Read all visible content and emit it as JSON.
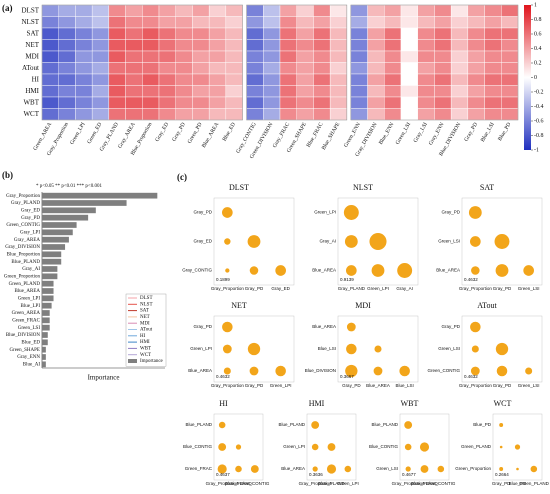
{
  "chart_data": [
    {
      "type": "heatmap",
      "label": "(a)",
      "rows": [
        "DLST",
        "NLST",
        "SAT",
        "NET",
        "MDI",
        "ATout",
        "HI",
        "HMI",
        "WBT",
        "WCT"
      ],
      "blocks": [
        {
          "columns": [
            "Green_AREA",
            "Gray_Proportion",
            "Green_LPI",
            "Green_ED",
            "Gray_PLAND",
            "Gray_AREA",
            "Blue_Proportion",
            "Gray_ED",
            "Gray_PD",
            "Green_PD",
            "Blue_AREA",
            "Blue_ED"
          ],
          "values": [
            [
              -0.5,
              -0.4,
              -0.4,
              -0.3,
              0.5,
              0.4,
              0.5,
              0.4,
              0.3,
              0.4,
              0.2,
              0.3
            ],
            [
              -0.6,
              -0.5,
              -0.4,
              -0.3,
              0.6,
              0.5,
              0.5,
              0.4,
              0.4,
              0.3,
              0.3,
              0.2
            ],
            [
              -0.8,
              -0.7,
              -0.6,
              -0.5,
              0.7,
              0.6,
              0.7,
              0.6,
              0.5,
              0.5,
              0.4,
              0.3
            ],
            [
              -0.8,
              -0.7,
              -0.6,
              -0.5,
              0.7,
              0.7,
              0.7,
              0.6,
              0.5,
              0.5,
              0.4,
              0.3
            ],
            [
              -0.8,
              -0.7,
              -0.5,
              -0.5,
              0.7,
              0.6,
              0.6,
              0.6,
              0.5,
              0.4,
              0.4,
              0.3
            ],
            [
              -0.7,
              -0.6,
              -0.5,
              -0.4,
              0.6,
              0.6,
              0.6,
              0.5,
              0.5,
              0.4,
              0.3,
              0.3
            ],
            [
              -0.7,
              -0.7,
              -0.6,
              -0.5,
              0.7,
              0.6,
              0.7,
              0.6,
              0.5,
              0.5,
              0.4,
              0.3
            ],
            [
              -0.7,
              -0.6,
              -0.6,
              -0.4,
              0.7,
              0.6,
              0.6,
              0.6,
              0.5,
              0.4,
              0.4,
              0.2
            ],
            [
              -0.8,
              -0.7,
              -0.6,
              -0.5,
              0.7,
              0.7,
              0.7,
              0.6,
              0.5,
              0.5,
              0.4,
              0.3
            ],
            [
              -0.7,
              -0.6,
              -0.5,
              -0.4,
              0.6,
              0.6,
              0.6,
              0.5,
              0.4,
              0.4,
              0.3,
              0.3
            ]
          ]
        },
        {
          "columns": [
            "Gray_CONTIG",
            "Green_DIVISION",
            "Gray_FRAC",
            "Green_SHAPE",
            "Blue_FRAC",
            "Blue_SHAPE"
          ],
          "values": [
            [
              -0.6,
              -0.3,
              0.4,
              0.2,
              0.5,
              0.1
            ],
            [
              -0.5,
              -0.3,
              0.5,
              0.3,
              0.4,
              0.2
            ],
            [
              -0.7,
              -0.5,
              0.6,
              0.4,
              0.6,
              0.3
            ],
            [
              -0.7,
              -0.5,
              0.6,
              0.5,
              0.6,
              0.3
            ],
            [
              -0.6,
              -0.5,
              0.6,
              0.4,
              0.5,
              0.3
            ],
            [
              -0.6,
              -0.4,
              0.5,
              0.4,
              0.5,
              0.2
            ],
            [
              -0.7,
              -0.5,
              0.6,
              0.4,
              0.6,
              0.3
            ],
            [
              -0.6,
              -0.5,
              0.6,
              0.4,
              0.5,
              0.3
            ],
            [
              -0.7,
              -0.5,
              0.6,
              0.5,
              0.6,
              0.3
            ],
            [
              -0.6,
              -0.4,
              0.5,
              0.4,
              0.5,
              0.2
            ]
          ]
        },
        {
          "columns": [
            "Green_ENN",
            "Gray_DIVISION",
            "Blue_ENN",
            "Green_LSI",
            "Gray_LSI",
            "Gray_ENN",
            "Blue_DIVISION",
            "Gray_PD",
            "Blue_LSI",
            "Blue_PD"
          ],
          "values": [
            [
              -0.5,
              0.3,
              0.4,
              0.1,
              0.4,
              0.5,
              0.1,
              0.4,
              0.5,
              0.6
            ],
            [
              -0.4,
              0.2,
              0.3,
              0.1,
              0.3,
              0.4,
              0.2,
              0.3,
              0.4,
              0.3
            ],
            [
              -0.6,
              0.4,
              0.6,
              0,
              0.5,
              0.6,
              0.3,
              0.5,
              0.6,
              0.6
            ],
            [
              -0.6,
              0.4,
              0.6,
              0,
              0.5,
              0.6,
              0.3,
              0.5,
              0.6,
              0.5
            ],
            [
              -0.6,
              0.3,
              0.5,
              0.1,
              0.5,
              0.5,
              0.2,
              0.4,
              0.5,
              0.5
            ],
            [
              -0.5,
              0.3,
              0.5,
              0,
              0.4,
              0.5,
              0.2,
              0.4,
              0.5,
              0.5
            ],
            [
              -0.6,
              0.4,
              0.6,
              0,
              0.5,
              0.6,
              0.3,
              0.5,
              0.6,
              0.6
            ],
            [
              -0.6,
              0.3,
              0.5,
              0.1,
              0.5,
              0.5,
              0.2,
              0.4,
              0.5,
              0.5
            ],
            [
              -0.6,
              0.4,
              0.6,
              0,
              0.5,
              0.6,
              0.3,
              0.5,
              0.6,
              0.6
            ],
            [
              -0.5,
              0.3,
              0.5,
              0,
              0.4,
              0.5,
              0.2,
              0.4,
              0.5,
              0.5
            ]
          ]
        }
      ],
      "clim": [
        -1,
        1
      ],
      "cticks": [
        1,
        0.8,
        0.6,
        0.4,
        0.2,
        0,
        -0.2,
        -0.4,
        -0.6,
        -0.8,
        -1
      ],
      "colors": [
        "#1f2fbf",
        "#ffffff",
        "#e0141c"
      ]
    },
    {
      "type": "hbar",
      "label": "(b)",
      "note": "* p<0.05  ** p<0.01  *** p<0.001",
      "xlabel": "Importance",
      "categories": [
        "Gray_Proportion",
        "Gray_PLAND",
        "Gray_ED",
        "Gray_PD",
        "Green_CONTIG",
        "Gray_LPI",
        "Gray_AREA",
        "Gray_DIVISION",
        "Blue_Proportion",
        "Blue_PLAND",
        "Gray_AI",
        "Green_Proportion",
        "Green_PLAND",
        "Blue_AREA",
        "Green_LPI",
        "Blue_LPI",
        "Green_AREA",
        "Green_FRAC",
        "Green_LSI",
        "Blue_DIVISION",
        "Blue_ED",
        "Green_SHAPE",
        "Gray_ENN",
        "Blue_AI"
      ],
      "series": [
        {
          "name": "Importance",
          "color": "#7f7f7f",
          "values": [
            30,
            22,
            14,
            12,
            9,
            8,
            7,
            6,
            5,
            5,
            4,
            4,
            3,
            3,
            3,
            2.5,
            2,
            2,
            2,
            1.5,
            1.5,
            1,
            1,
            1
          ]
        }
      ],
      "xlim": [
        0,
        32
      ],
      "legend": [
        {
          "name": "DLST",
          "color": "#f4a3a8"
        },
        {
          "name": "NLST",
          "color": "#e5534b"
        },
        {
          "name": "SAT",
          "color": "#c0392b"
        },
        {
          "name": "NET",
          "color": "#f7c6a3"
        },
        {
          "name": "MDI",
          "color": "#d98cb3"
        },
        {
          "name": "ATout",
          "color": "#9fc5e8"
        },
        {
          "name": "HI",
          "color": "#6fa8dc"
        },
        {
          "name": "HMI",
          "color": "#3d85c6"
        },
        {
          "name": "WBT",
          "color": "#8e7cc3"
        },
        {
          "name": "WCT",
          "color": "#b4a7d6"
        }
      ]
    },
    {
      "type": "dot-matrix",
      "label": "(c)",
      "color": "#f2a51a",
      "panels": [
        {
          "title": "DLST",
          "variables": [
            "Gray_Proportion",
            "Gray_PD",
            "Gray_ED",
            "Gray_CONTIG"
          ],
          "values": [
            0.5,
            0.3,
            0.6,
            0.2,
            0.4,
            0.5
          ],
          "annotation": 0.1899
        },
        {
          "title": "NLST",
          "variables": [
            "Gray_PLAND",
            "Green_LPI",
            "Gray_AI",
            "Blue_AREA"
          ],
          "values": [
            0.7,
            0.6,
            0.8,
            0.5,
            0.6,
            0.7
          ],
          "annotation": 0.9139
        },
        {
          "title": "SAT",
          "variables": [
            "Gray_Proportion",
            "Gray_PD",
            "Green_LSI",
            "Blue_AREA"
          ],
          "values": [
            0.6,
            0.5,
            0.7,
            0.4,
            0.6,
            0.5
          ],
          "annotation": 0.4632
        },
        {
          "title": "NET",
          "variables": [
            "Gray_Proportion",
            "Gray_PD",
            "Green_LPI",
            "Blue_AREA"
          ],
          "values": [
            0.6,
            0.5,
            0.7,
            0.4,
            0.5,
            0.6
          ],
          "annotation": 0.4632
        },
        {
          "title": "MDI",
          "variables": [
            "Gray_PD",
            "Blue_AREA",
            "Blue_LSI",
            "Blue_DIVISION"
          ],
          "values": [
            0.5,
            0.6,
            0.4,
            0.7,
            0.5,
            0.6
          ],
          "annotation": 0.3667
        },
        {
          "title": "ATout",
          "variables": [
            "Gray_Proportion",
            "Gray_PD",
            "Green_LSI",
            "Green_CONTIG"
          ],
          "values": [
            0.6,
            0.4,
            0.7,
            0.5,
            0.6,
            0.4
          ],
          "annotation": 0.4632
        },
        {
          "title": "HI",
          "variables": [
            "Gray_Proportion",
            "Blue_PLAND",
            "Blue_CONTIG",
            "Green_FRAC"
          ],
          "values": [
            0.5,
            0.6,
            0.4,
            0.7,
            0.5,
            0.6
          ],
          "annotation": 0.4637
        },
        {
          "title": "HMI",
          "variables": [
            "Gray_Proportion",
            "Blue_PLAND",
            "Green_LPI",
            "Blue_AREA"
          ],
          "values": [
            0.6,
            0.5,
            0.6,
            0.4,
            0.7,
            0.5
          ],
          "annotation": 0.3636
        },
        {
          "title": "WBT",
          "variables": [
            "Gray_Proportion",
            "Blue_PLAND",
            "Blue_CONTIG",
            "Green_LSI"
          ],
          "values": [
            0.6,
            0.5,
            0.7,
            0.4,
            0.6,
            0.5
          ],
          "annotation": 0.4677
        },
        {
          "title": "WCT",
          "variables": [
            "Gray_PD",
            "Blue_PD",
            "Green_PLAND",
            "Green_Proportion"
          ],
          "values": [
            0.3,
            0.2,
            0.4,
            0.3,
            0.2,
            0.5
          ],
          "annotation": 0.2664
        }
      ]
    }
  ]
}
